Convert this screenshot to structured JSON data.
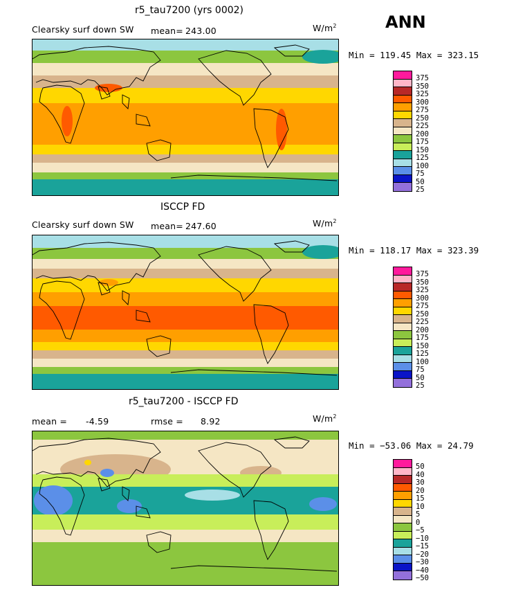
{
  "season": "ANN",
  "panels": [
    {
      "title": "r5_tau7200 (yrs 0002)",
      "left_label": "Clearsky surf down SW",
      "mid_label": "mean=",
      "mid_value": "243.00",
      "units": "W/m",
      "units_sup": "2",
      "minmax": "Min = 119.45 Max = 323.15",
      "colorbar_labels": [
        "375",
        "350",
        "325",
        "300",
        "275",
        "250",
        "225",
        "200",
        "175",
        "150",
        "125",
        "100",
        "75",
        "50",
        "25"
      ]
    },
    {
      "title": "ISCCP FD",
      "left_label": "Clearsky surf down SW",
      "mid_label": "mean=",
      "mid_value": "247.60",
      "units": "W/m",
      "units_sup": "2",
      "minmax": "Min = 118.17 Max = 323.39",
      "colorbar_labels": [
        "375",
        "350",
        "325",
        "300",
        "275",
        "250",
        "225",
        "200",
        "175",
        "150",
        "125",
        "100",
        "75",
        "50",
        "25"
      ]
    },
    {
      "title": "r5_tau7200 - ISCCP FD",
      "left_label": "mean =",
      "left_value": "-4.59",
      "mid_label": "rmse =",
      "mid_value": "8.92",
      "units": "W/m",
      "units_sup": "2",
      "minmax": "Min = −53.06 Max =  24.79",
      "colorbar_labels": [
        "50",
        "40",
        "30",
        "20",
        "15",
        "10",
        "5",
        "0",
        "−5",
        "−10",
        "−15",
        "−20",
        "−30",
        "−40",
        "−50"
      ]
    }
  ],
  "colors": {
    "abs_scale": [
      "#ff1a9c",
      "#ffb6c8",
      "#b82828",
      "#ff5a00",
      "#ff9f00",
      "#ffd700",
      "#d8b48c",
      "#f5e6c4",
      "#8cc63f",
      "#c8ee5a",
      "#1aa39a",
      "#a8dfe6",
      "#5b8fe8",
      "#0a14c8",
      "#9370db"
    ],
    "diff_scale": [
      "#ff1a9c",
      "#ffb6c8",
      "#b82828",
      "#ff5a00",
      "#ff9f00",
      "#ffd700",
      "#d8b48c",
      "#f5e6c4",
      "#8cc63f",
      "#c8ee5a",
      "#1aa39a",
      "#a8dfe6",
      "#5b8fe8",
      "#0a14c8",
      "#9370db"
    ]
  }
}
